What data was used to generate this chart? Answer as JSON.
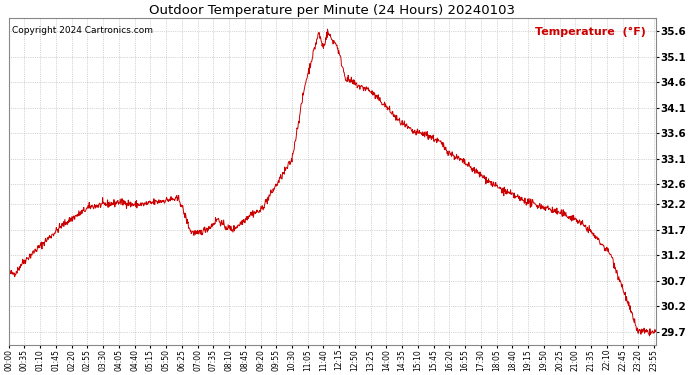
{
  "title": "Outdoor Temperature per Minute (24 Hours) 20240103",
  "copyright_text": "Copyright 2024 Cartronics.com",
  "legend_label": "Temperature  (°F)",
  "line_color": "#cc0000",
  "background_color": "#ffffff",
  "grid_color": "#b0b0b0",
  "yticks": [
    29.7,
    30.2,
    30.7,
    31.2,
    31.7,
    32.2,
    32.6,
    33.1,
    33.6,
    34.1,
    34.6,
    35.1,
    35.6
  ],
  "ymin": 29.45,
  "ymax": 35.85,
  "x_tick_labels": [
    "00:00",
    "00:35",
    "01:10",
    "01:45",
    "02:20",
    "02:55",
    "03:30",
    "04:05",
    "04:40",
    "05:15",
    "05:50",
    "06:25",
    "07:00",
    "07:35",
    "08:10",
    "08:45",
    "09:20",
    "09:55",
    "10:30",
    "11:05",
    "11:40",
    "12:15",
    "12:50",
    "13:25",
    "14:00",
    "14:35",
    "15:10",
    "15:45",
    "16:20",
    "16:55",
    "17:30",
    "18:05",
    "18:40",
    "19:15",
    "19:50",
    "20:25",
    "21:00",
    "21:35",
    "22:10",
    "22:45",
    "23:20",
    "23:55"
  ]
}
